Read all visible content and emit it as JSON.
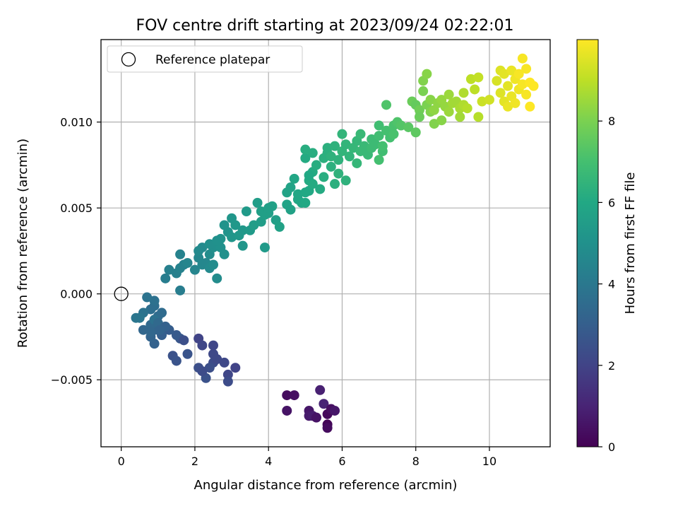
{
  "chart_data": {
    "type": "scatter",
    "title": "FOV centre drift starting at 2023/09/24 02:22:01",
    "xlabel": "Angular distance from reference (arcmin)",
    "ylabel": "Rotation from reference (arcmin)",
    "colorbar_label": "Hours from first FF file",
    "xlim": [
      -0.55,
      11.65
    ],
    "ylim": [
      -0.0089,
      0.0148
    ],
    "clim": [
      0,
      10
    ],
    "colormap": "viridis",
    "grid": true,
    "legend": {
      "placement": "upper-left",
      "entries": [
        {
          "label": "Reference platepar",
          "marker": "hollow-circle"
        }
      ]
    },
    "x_ticks": [
      {
        "value": 0,
        "label": "0"
      },
      {
        "value": 2,
        "label": "2"
      },
      {
        "value": 4,
        "label": "4"
      },
      {
        "value": 6,
        "label": "6"
      },
      {
        "value": 8,
        "label": "8"
      },
      {
        "value": 10,
        "label": "10"
      }
    ],
    "y_ticks": [
      {
        "value": -0.005,
        "label": "−0.005"
      },
      {
        "value": 0,
        "label": "0.000"
      },
      {
        "value": 0.005,
        "label": "0.005"
      },
      {
        "value": 0.01,
        "label": "0.010"
      }
    ],
    "colorbar_ticks": [
      {
        "value": 0,
        "label": "0"
      },
      {
        "value": 2,
        "label": "2"
      },
      {
        "value": 4,
        "label": "4"
      },
      {
        "value": 6,
        "label": "6"
      },
      {
        "value": 8,
        "label": "8"
      }
    ],
    "reference_point": {
      "x": 0,
      "y": 0
    },
    "points": [
      [
        4.5,
        -0.0059,
        0.3
      ],
      [
        4.7,
        -0.0059,
        0.4
      ],
      [
        4.5,
        -0.0068,
        0.5
      ],
      [
        5.1,
        -0.0068,
        0.6
      ],
      [
        5.1,
        -0.0071,
        0.7
      ],
      [
        5.2,
        -0.0071,
        0.8
      ],
      [
        5.4,
        -0.0056,
        0.9
      ],
      [
        5.5,
        -0.0064,
        1.0
      ],
      [
        5.6,
        -0.007,
        0.2
      ],
      [
        5.6,
        -0.0076,
        0.1
      ],
      [
        5.7,
        -0.0067,
        0.4
      ],
      [
        5.8,
        -0.0068,
        0.6
      ],
      [
        5.6,
        -0.0078,
        0.3
      ],
      [
        5.3,
        -0.0072,
        0.5
      ],
      [
        2.1,
        -0.0026,
        2.0
      ],
      [
        2.2,
        -0.003,
        2.1
      ],
      [
        2.5,
        -0.0035,
        2.2
      ],
      [
        2.5,
        -0.004,
        2.3
      ],
      [
        2.6,
        -0.0038,
        2.2
      ],
      [
        2.5,
        -0.003,
        2.1
      ],
      [
        2.8,
        -0.004,
        2.2
      ],
      [
        3.1,
        -0.0043,
        2.0
      ],
      [
        2.9,
        -0.0047,
        2.1
      ],
      [
        2.9,
        -0.0051,
        2.3
      ],
      [
        2.4,
        -0.0043,
        2.4
      ],
      [
        2.3,
        -0.0049,
        2.5
      ],
      [
        2.1,
        -0.0043,
        2.4
      ],
      [
        2.2,
        -0.0045,
        2.3
      ],
      [
        1.8,
        -0.0035,
        2.6
      ],
      [
        1.6,
        -0.0026,
        2.7
      ],
      [
        1.5,
        -0.0024,
        2.8
      ],
      [
        1.4,
        -0.0036,
        2.5
      ],
      [
        1.5,
        -0.0039,
        2.6
      ],
      [
        1.7,
        -0.0027,
        2.4
      ],
      [
        1.3,
        -0.0021,
        2.9
      ],
      [
        1.1,
        -0.0024,
        3.0
      ],
      [
        1.0,
        -0.0021,
        3.0
      ],
      [
        0.9,
        -0.0029,
        3.1
      ],
      [
        0.8,
        -0.0025,
        3.2
      ],
      [
        0.9,
        -0.0021,
        3.2
      ],
      [
        0.6,
        -0.0021,
        3.3
      ],
      [
        0.8,
        -0.0018,
        3.4
      ],
      [
        1.1,
        -0.0011,
        3.5
      ],
      [
        1.0,
        -0.0013,
        3.5
      ],
      [
        0.9,
        -0.0007,
        3.6
      ],
      [
        0.8,
        -0.0009,
        3.6
      ],
      [
        0.9,
        -0.0004,
        3.7
      ],
      [
        0.7,
        -0.0002,
        3.8
      ],
      [
        0.6,
        -0.0011,
        3.8
      ],
      [
        0.5,
        -0.0014,
        3.9
      ],
      [
        0.4,
        -0.0014,
        3.9
      ],
      [
        0.9,
        -0.0015,
        3.7
      ],
      [
        1.0,
        -0.0017,
        3.4
      ],
      [
        0.8,
        -0.0022,
        3.3
      ],
      [
        1.2,
        -0.0019,
        3.1
      ],
      [
        1.05,
        -0.0021,
        3.2
      ],
      [
        1.2,
        0.0009,
        4.2
      ],
      [
        1.3,
        0.0014,
        4.3
      ],
      [
        1.5,
        0.0012,
        4.3
      ],
      [
        1.6,
        0.0015,
        4.4
      ],
      [
        1.7,
        0.0017,
        4.4
      ],
      [
        1.8,
        0.0018,
        4.5
      ],
      [
        1.6,
        0.0023,
        4.4
      ],
      [
        1.6,
        0.0002,
        4.2
      ],
      [
        2.0,
        0.0014,
        4.5
      ],
      [
        2.1,
        0.0021,
        4.6
      ],
      [
        2.2,
        0.0017,
        4.6
      ],
      [
        2.1,
        0.0025,
        4.7
      ],
      [
        2.2,
        0.0027,
        4.7
      ],
      [
        2.3,
        0.0018,
        4.6
      ],
      [
        2.4,
        0.0015,
        4.7
      ],
      [
        2.5,
        0.0017,
        4.8
      ],
      [
        2.4,
        0.0023,
        4.8
      ],
      [
        2.5,
        0.0027,
        4.9
      ],
      [
        2.4,
        0.0029,
        4.9
      ],
      [
        2.6,
        0.0009,
        4.8
      ],
      [
        2.7,
        0.0027,
        5.0
      ],
      [
        2.8,
        0.0023,
        5.0
      ],
      [
        2.7,
        0.0032,
        5.1
      ],
      [
        2.6,
        0.0031,
        5.0
      ],
      [
        2.9,
        0.0036,
        5.1
      ],
      [
        2.8,
        0.004,
        5.1
      ],
      [
        3.0,
        0.0044,
        5.2
      ],
      [
        3.0,
        0.0033,
        5.2
      ],
      [
        3.1,
        0.004,
        5.3
      ],
      [
        3.2,
        0.0034,
        5.3
      ],
      [
        3.3,
        0.0028,
        5.2
      ],
      [
        3.3,
        0.0037,
        5.3
      ],
      [
        3.4,
        0.0048,
        5.4
      ],
      [
        3.5,
        0.0037,
        5.4
      ],
      [
        3.6,
        0.004,
        5.5
      ],
      [
        3.7,
        0.0053,
        5.5
      ],
      [
        3.8,
        0.0048,
        5.6
      ],
      [
        3.8,
        0.0042,
        5.5
      ],
      [
        3.9,
        0.0046,
        5.6
      ],
      [
        4.0,
        0.0047,
        5.6
      ],
      [
        3.9,
        0.0027,
        5.4
      ],
      [
        4.1,
        0.0051,
        5.7
      ],
      [
        4.2,
        0.0043,
        5.6
      ],
      [
        4.3,
        0.0039,
        5.7
      ],
      [
        4.0,
        0.005,
        5.6
      ],
      [
        4.5,
        0.0052,
        5.8
      ],
      [
        4.5,
        0.0059,
        5.8
      ],
      [
        4.6,
        0.0062,
        5.8
      ],
      [
        4.6,
        0.0049,
        5.7
      ],
      [
        4.7,
        0.0067,
        5.9
      ],
      [
        4.8,
        0.0055,
        5.9
      ],
      [
        4.8,
        0.0058,
        5.9
      ],
      [
        4.9,
        0.0053,
        5.9
      ],
      [
        5.0,
        0.0059,
        6.0
      ],
      [
        5.1,
        0.006,
        6.0
      ],
      [
        5.1,
        0.0066,
        6.1
      ],
      [
        5.2,
        0.0064,
        6.1
      ],
      [
        5.2,
        0.0071,
        6.1
      ],
      [
        5.1,
        0.0069,
        6.0
      ],
      [
        5.0,
        0.0053,
        6.0
      ],
      [
        5.0,
        0.0079,
        6.1
      ],
      [
        5.0,
        0.0084,
        6.2
      ],
      [
        5.2,
        0.0082,
        6.2
      ],
      [
        5.3,
        0.0075,
        6.2
      ],
      [
        5.4,
        0.0061,
        6.1
      ],
      [
        5.5,
        0.0068,
        6.2
      ],
      [
        5.5,
        0.0079,
        6.3
      ],
      [
        5.6,
        0.0085,
        6.3
      ],
      [
        5.6,
        0.0082,
        6.3
      ],
      [
        5.7,
        0.0074,
        6.3
      ],
      [
        5.7,
        0.008,
        6.4
      ],
      [
        5.8,
        0.0086,
        6.4
      ],
      [
        5.8,
        0.0064,
        6.3
      ],
      [
        5.9,
        0.007,
        6.4
      ],
      [
        5.9,
        0.0078,
        6.4
      ],
      [
        6.0,
        0.0083,
        6.5
      ],
      [
        6.0,
        0.0093,
        6.5
      ],
      [
        6.1,
        0.0087,
        6.5
      ],
      [
        6.1,
        0.0066,
        6.4
      ],
      [
        6.2,
        0.008,
        6.5
      ],
      [
        6.3,
        0.0085,
        6.6
      ],
      [
        6.4,
        0.0076,
        6.6
      ],
      [
        6.4,
        0.0089,
        6.6
      ],
      [
        6.5,
        0.0083,
        6.7
      ],
      [
        6.5,
        0.0093,
        6.7
      ],
      [
        6.6,
        0.0086,
        6.7
      ],
      [
        6.7,
        0.0081,
        6.7
      ],
      [
        6.8,
        0.009,
        6.8
      ],
      [
        6.8,
        0.0085,
        6.8
      ],
      [
        6.9,
        0.0087,
        6.8
      ],
      [
        7.0,
        0.0092,
        6.9
      ],
      [
        7.0,
        0.0098,
        6.9
      ],
      [
        7.1,
        0.0083,
        6.9
      ],
      [
        7.1,
        0.0086,
        7.0
      ],
      [
        7.2,
        0.0095,
        7.0
      ],
      [
        7.3,
        0.0091,
        7.0
      ],
      [
        7.4,
        0.0093,
        7.1
      ],
      [
        7.4,
        0.0098,
        7.1
      ],
      [
        7.2,
        0.011,
        7.2
      ],
      [
        7.0,
        0.0078,
        7.0
      ],
      [
        7.5,
        0.01,
        7.2
      ],
      [
        7.6,
        0.0098,
        7.3
      ],
      [
        7.8,
        0.0097,
        7.4
      ],
      [
        8.0,
        0.0094,
        7.5
      ],
      [
        7.9,
        0.0112,
        7.7
      ],
      [
        8.0,
        0.011,
        7.6
      ],
      [
        8.1,
        0.0107,
        7.8
      ],
      [
        8.1,
        0.0103,
        7.7
      ],
      [
        8.2,
        0.0118,
        8.0
      ],
      [
        8.2,
        0.0124,
        8.1
      ],
      [
        8.3,
        0.011,
        8.0
      ],
      [
        8.3,
        0.0128,
        8.2
      ],
      [
        8.4,
        0.0106,
        8.1
      ],
      [
        8.4,
        0.0113,
        8.2
      ],
      [
        8.5,
        0.0099,
        8.1
      ],
      [
        8.5,
        0.0107,
        8.3
      ],
      [
        8.6,
        0.0111,
        8.3
      ],
      [
        8.7,
        0.0101,
        8.2
      ],
      [
        8.7,
        0.0113,
        8.4
      ],
      [
        8.8,
        0.0109,
        8.4
      ],
      [
        8.9,
        0.0116,
        8.5
      ],
      [
        8.9,
        0.0106,
        8.5
      ],
      [
        9.0,
        0.0111,
        8.6
      ],
      [
        9.1,
        0.0112,
        8.6
      ],
      [
        9.2,
        0.0108,
        8.7
      ],
      [
        9.2,
        0.0103,
        8.6
      ],
      [
        9.3,
        0.0117,
        8.8
      ],
      [
        9.3,
        0.011,
        8.8
      ],
      [
        9.4,
        0.0108,
        8.9
      ],
      [
        9.5,
        0.0125,
        9.0
      ],
      [
        9.6,
        0.0119,
        9.0
      ],
      [
        9.7,
        0.0126,
        9.1
      ],
      [
        9.7,
        0.0103,
        8.9
      ],
      [
        9.8,
        0.0112,
        9.2
      ],
      [
        10.0,
        0.0113,
        9.3
      ],
      [
        10.2,
        0.0124,
        9.4
      ],
      [
        10.3,
        0.013,
        9.5
      ],
      [
        10.3,
        0.0117,
        9.5
      ],
      [
        10.4,
        0.0128,
        9.6
      ],
      [
        10.4,
        0.0112,
        9.6
      ],
      [
        10.5,
        0.0121,
        9.6
      ],
      [
        10.5,
        0.0109,
        9.7
      ],
      [
        10.6,
        0.013,
        9.7
      ],
      [
        10.6,
        0.0115,
        9.7
      ],
      [
        10.7,
        0.0125,
        9.8
      ],
      [
        10.7,
        0.0111,
        9.8
      ],
      [
        10.8,
        0.0119,
        9.8
      ],
      [
        10.8,
        0.0128,
        9.9
      ],
      [
        10.9,
        0.0137,
        9.9
      ],
      [
        10.9,
        0.0122,
        9.9
      ],
      [
        11.0,
        0.0131,
        9.9
      ],
      [
        11.0,
        0.0116,
        9.9
      ],
      [
        11.1,
        0.0123,
        10.0
      ],
      [
        11.2,
        0.0121,
        10.0
      ],
      [
        11.1,
        0.0109,
        10.0
      ]
    ]
  }
}
